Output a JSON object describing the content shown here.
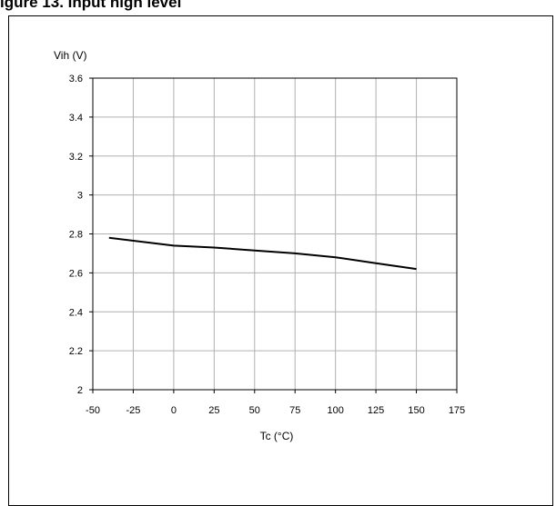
{
  "header": {
    "title": "igure 13. Input high level"
  },
  "chart_data": {
    "type": "line",
    "title": "",
    "xlabel": "Tc (°C)",
    "ylabel": "Vih (V)",
    "xlim": [
      -50,
      175
    ],
    "ylim": [
      2,
      3.6
    ],
    "x_ticks": [
      -50,
      -25,
      0,
      25,
      50,
      75,
      100,
      125,
      150,
      175
    ],
    "x_tick_labels": [
      "-50",
      "-25",
      "0",
      "25",
      "50",
      "75",
      "100",
      "125",
      "150",
      "175"
    ],
    "y_ticks": [
      2,
      2.2,
      2.4,
      2.6,
      2.8,
      3,
      3.2,
      3.4,
      3.6
    ],
    "y_tick_labels": [
      "2",
      "2.2",
      "2.4",
      "2.6",
      "2.8",
      "3",
      "3.2",
      "3.4",
      "3.6"
    ],
    "grid": true,
    "series": [
      {
        "x": [
          -40,
          0,
          25,
          50,
          75,
          100,
          125,
          150
        ],
        "y": [
          2.78,
          2.74,
          2.73,
          2.715,
          2.7,
          2.68,
          2.65,
          2.62
        ]
      }
    ],
    "colors": {
      "line": "#000000",
      "grid": "#b0b0b0",
      "axis": "#000000"
    }
  }
}
